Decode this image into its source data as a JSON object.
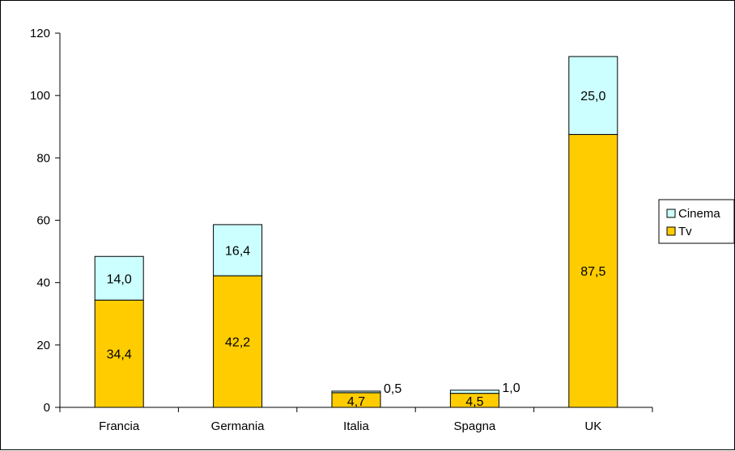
{
  "chart_data": {
    "type": "bar",
    "stacked": true,
    "categories": [
      "Francia",
      "Germania",
      "Italia",
      "Spagna",
      "UK"
    ],
    "series": [
      {
        "name": "Tv",
        "values": [
          34.4,
          42.2,
          4.7,
          4.5,
          87.5
        ],
        "labels": [
          "34,4",
          "42,2",
          "4,7",
          "4,5",
          "87,5"
        ],
        "color": "#FFCC00"
      },
      {
        "name": "Cinema",
        "values": [
          14.0,
          16.4,
          0.5,
          1.0,
          25.0
        ],
        "labels": [
          "14,0",
          "16,4",
          "0,5",
          "1,0",
          "25,0"
        ],
        "color": "#CCFFFF"
      }
    ],
    "yticks": [
      "0",
      "20",
      "40",
      "60",
      "80",
      "100",
      "120"
    ],
    "ylim": [
      0,
      120
    ],
    "grid": false,
    "legend_position": "right",
    "legend_order": [
      "Cinema",
      "Tv"
    ]
  }
}
